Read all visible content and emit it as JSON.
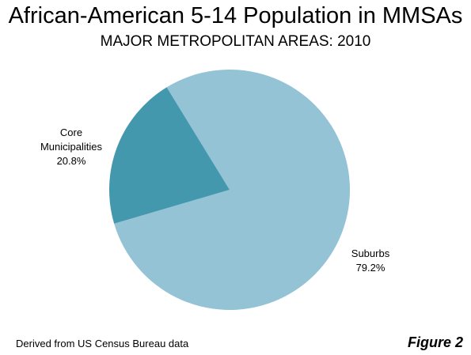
{
  "chart_data": {
    "type": "pie",
    "title": "African-American 5-14 Population in MMSAs",
    "subtitle": "MAJOR METROPOLITAN AREAS: 2010",
    "slices": [
      {
        "label_lines": [
          "Suburbs"
        ],
        "value": 79.2,
        "value_label": "79.2%",
        "color": "#93c3d5"
      },
      {
        "label_lines": [
          "Core",
          "Municipalities"
        ],
        "value": 20.8,
        "value_label": "20.8%",
        "color": "#4398ad"
      }
    ],
    "source": "Derived from US Census Bureau data",
    "figure_label": "Figure 2"
  }
}
